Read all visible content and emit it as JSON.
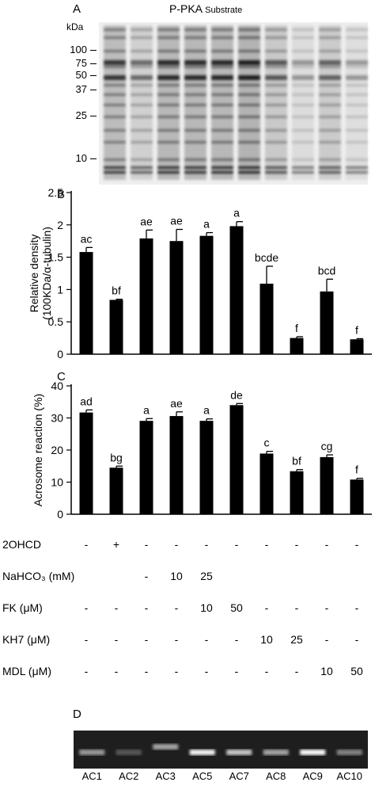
{
  "panel_a": {
    "letter": "A",
    "title_main": "P-PKA",
    "title_small": "Substrate",
    "unit_label": "kDa",
    "markers": [
      "100",
      "75",
      "50",
      "37",
      "25",
      "10"
    ]
  },
  "chart_data": [
    {
      "type": "bar",
      "letter": "B",
      "ylabel_line1": "Relative density",
      "ylabel_line2": "(100KDa/α-tubulin)",
      "ylim": [
        0,
        2.5
      ],
      "yticks": [
        "0",
        "0.5",
        "1",
        "1.5",
        "2",
        "2.5"
      ],
      "ytick_values": [
        0,
        0.5,
        1,
        1.5,
        2,
        2.5
      ],
      "values": [
        1.58,
        0.84,
        1.79,
        1.75,
        1.83,
        1.98,
        1.09,
        0.25,
        0.97,
        0.23
      ],
      "errors": [
        0.07,
        0.01,
        0.13,
        0.18,
        0.05,
        0.07,
        0.27,
        0.02,
        0.19,
        0.01
      ],
      "letters": [
        "ac",
        "bf",
        "ae",
        "ae",
        "a",
        "a",
        "bcde",
        "f",
        "bcd",
        "f"
      ],
      "grid": false
    },
    {
      "type": "bar",
      "letter": "C",
      "ylabel_line1": "Acrosome reaction (%)",
      "ylim": [
        0,
        40
      ],
      "yticks": [
        "0",
        "10",
        "20",
        "30",
        "40"
      ],
      "ytick_values": [
        0,
        10,
        20,
        30,
        40
      ],
      "values": [
        31.7,
        14.5,
        29.1,
        30.6,
        29.1,
        34.0,
        18.9,
        13.4,
        17.8,
        10.8
      ],
      "errors": [
        0.8,
        0.5,
        0.7,
        1.3,
        0.6,
        0.5,
        0.7,
        0.5,
        0.7,
        0.4
      ],
      "letters": [
        "ad",
        "bg",
        "a",
        "ae",
        "a",
        "de",
        "c",
        "bf",
        "cg",
        "f"
      ],
      "grid": false
    }
  ],
  "treatment_table": [
    {
      "label": "2OHCD",
      "cells": [
        "-",
        "+",
        "-",
        "-",
        "-",
        "-",
        "-",
        "-",
        "-",
        "-"
      ]
    },
    {
      "label": "NaHCO₃ (mM)",
      "cells": [
        "",
        "",
        "-",
        "10",
        "25",
        "",
        "",
        "",
        "",
        ""
      ]
    },
    {
      "label": "FK (μM)",
      "cells": [
        "-",
        "-",
        "-",
        "-",
        "10",
        "50",
        "-",
        "-",
        "-",
        "-"
      ]
    },
    {
      "label": "KH7 (μM)",
      "cells": [
        "-",
        "-",
        "-",
        "-",
        "-",
        "-",
        "10",
        "25",
        "-",
        "-"
      ]
    },
    {
      "label": "MDL (μM)",
      "cells": [
        "-",
        "-",
        "-",
        "-",
        "-",
        "-",
        "-",
        "-",
        "10",
        "50"
      ]
    }
  ],
  "panel_d": {
    "letter": "D",
    "lanes": [
      "AC1",
      "AC2",
      "AC3",
      "AC5",
      "AC7",
      "AC8",
      "AC9",
      "AC10"
    ],
    "band_intensity": [
      0.55,
      0.25,
      0.6,
      0.95,
      0.75,
      0.6,
      0.98,
      0.45
    ]
  }
}
